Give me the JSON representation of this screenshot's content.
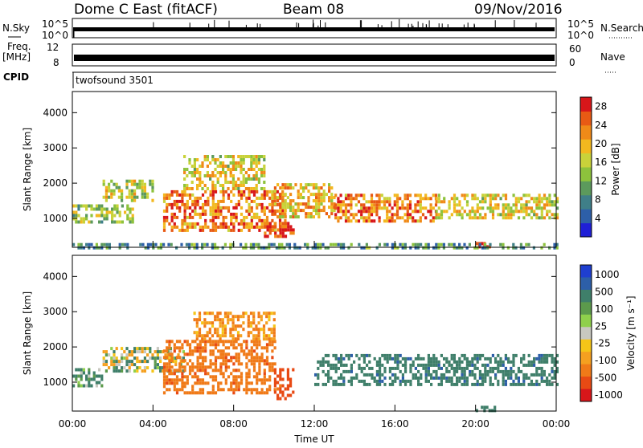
{
  "header": {
    "station": "Dome C East (fitACF)",
    "beam": "Beam 08",
    "date": "09/Nov/2016"
  },
  "strips": {
    "nsky_label": "N.Sky",
    "nsky_ticks_left": [
      "10^5",
      "10^0"
    ],
    "nsky_ticks_right": [
      "10^5",
      "10^0"
    ],
    "nsearch_label": "N.Search",
    "freq_label_1": "Freq.",
    "freq_label_2": "[MHz]",
    "freq_ticks_left": [
      "12",
      "8"
    ],
    "freq_ticks_right": [
      "60",
      "0"
    ],
    "nave_label": "Nave",
    "cpid_label": "CPID",
    "cpid_value": "twofsound 3501"
  },
  "colors": {
    "power_scale": [
      "#1f1fd6",
      "#2d5fa8",
      "#3f7f88",
      "#5c9a5c",
      "#8dc23c",
      "#c9d23a",
      "#f2b81f",
      "#f08a18",
      "#e85a14",
      "#d8161a"
    ],
    "velocity_scale": [
      "#1f3fd0",
      "#2d5fa8",
      "#3f7f6a",
      "#5c9a4c",
      "#8fd04c",
      "#c8c8c0",
      "#f5c518",
      "#f5a020",
      "#f07a18",
      "#e84a14",
      "#d8161a"
    ]
  },
  "chart_data": [
    {
      "type": "heatmap",
      "panel": "power",
      "xlabel": "",
      "ylabel": "Slant Range [km]",
      "xlim": [
        "00:00",
        "24:00"
      ],
      "ylim": [
        180,
        4600
      ],
      "yticks": [
        "1000",
        "2000",
        "3000",
        "4000"
      ],
      "colorbar_label": "Power [dB]",
      "colorbar_ticks": [
        "28",
        "24",
        "20",
        "16",
        "12",
        "8",
        "4"
      ],
      "colorbar_range": [
        0,
        30
      ],
      "regions": [
        {
          "t0": 0.0,
          "t1": 3.0,
          "r0": 900,
          "r1": 1400,
          "level": 12
        },
        {
          "t0": 1.5,
          "t1": 4.0,
          "r0": 1500,
          "r1": 2100,
          "level": 14
        },
        {
          "t0": 4.5,
          "t1": 10.5,
          "r0": 700,
          "r1": 1800,
          "level": 22
        },
        {
          "t0": 5.5,
          "t1": 9.5,
          "r0": 1800,
          "r1": 2800,
          "level": 16
        },
        {
          "t0": 9.5,
          "t1": 11.0,
          "r0": 500,
          "r1": 900,
          "level": 26
        },
        {
          "t0": 10.0,
          "t1": 13.0,
          "r0": 1000,
          "r1": 2000,
          "level": 18
        },
        {
          "t0": 13.0,
          "t1": 18.0,
          "r0": 900,
          "r1": 1700,
          "level": 22
        },
        {
          "t0": 18.0,
          "t1": 24.0,
          "r0": 1000,
          "r1": 1700,
          "level": 16
        },
        {
          "t0": 20.0,
          "t1": 21.0,
          "r0": 200,
          "r1": 330,
          "level": 28
        },
        {
          "t0": 0.0,
          "t1": 24.0,
          "r0": 200,
          "r1": 300,
          "level": 8
        }
      ]
    },
    {
      "type": "heatmap",
      "panel": "velocity",
      "xlabel": "Time UT",
      "ylabel": "Slant Range [km]",
      "xticks": [
        "00:00",
        "04:00",
        "08:00",
        "12:00",
        "16:00",
        "20:00",
        "00:00"
      ],
      "ylim": [
        180,
        4600
      ],
      "yticks": [
        "1000",
        "2000",
        "3000",
        "4000"
      ],
      "colorbar_label": "Velocity [m s⁻¹]",
      "colorbar_ticks": [
        "1000",
        "500",
        "100",
        "25",
        "-25",
        "-100",
        "-500",
        "-1000"
      ],
      "regions": [
        {
          "t0": 0.0,
          "t1": 1.5,
          "r0": 900,
          "r1": 1400,
          "v": 100
        },
        {
          "t0": 1.5,
          "t1": 5.5,
          "r0": 1300,
          "r1": 2000,
          "v": 0
        },
        {
          "t0": 4.5,
          "t1": 10.0,
          "r0": 700,
          "r1": 2200,
          "v": -300
        },
        {
          "t0": 6.0,
          "t1": 10.0,
          "r0": 2200,
          "r1": 3000,
          "v": -150
        },
        {
          "t0": 10.0,
          "t1": 11.0,
          "r0": 500,
          "r1": 1400,
          "v": -500
        },
        {
          "t0": 12.0,
          "t1": 24.0,
          "r0": 900,
          "r1": 1800,
          "v": 200
        },
        {
          "t0": 20.0,
          "t1": 21.0,
          "r0": 200,
          "r1": 330,
          "v": 150
        }
      ]
    }
  ]
}
